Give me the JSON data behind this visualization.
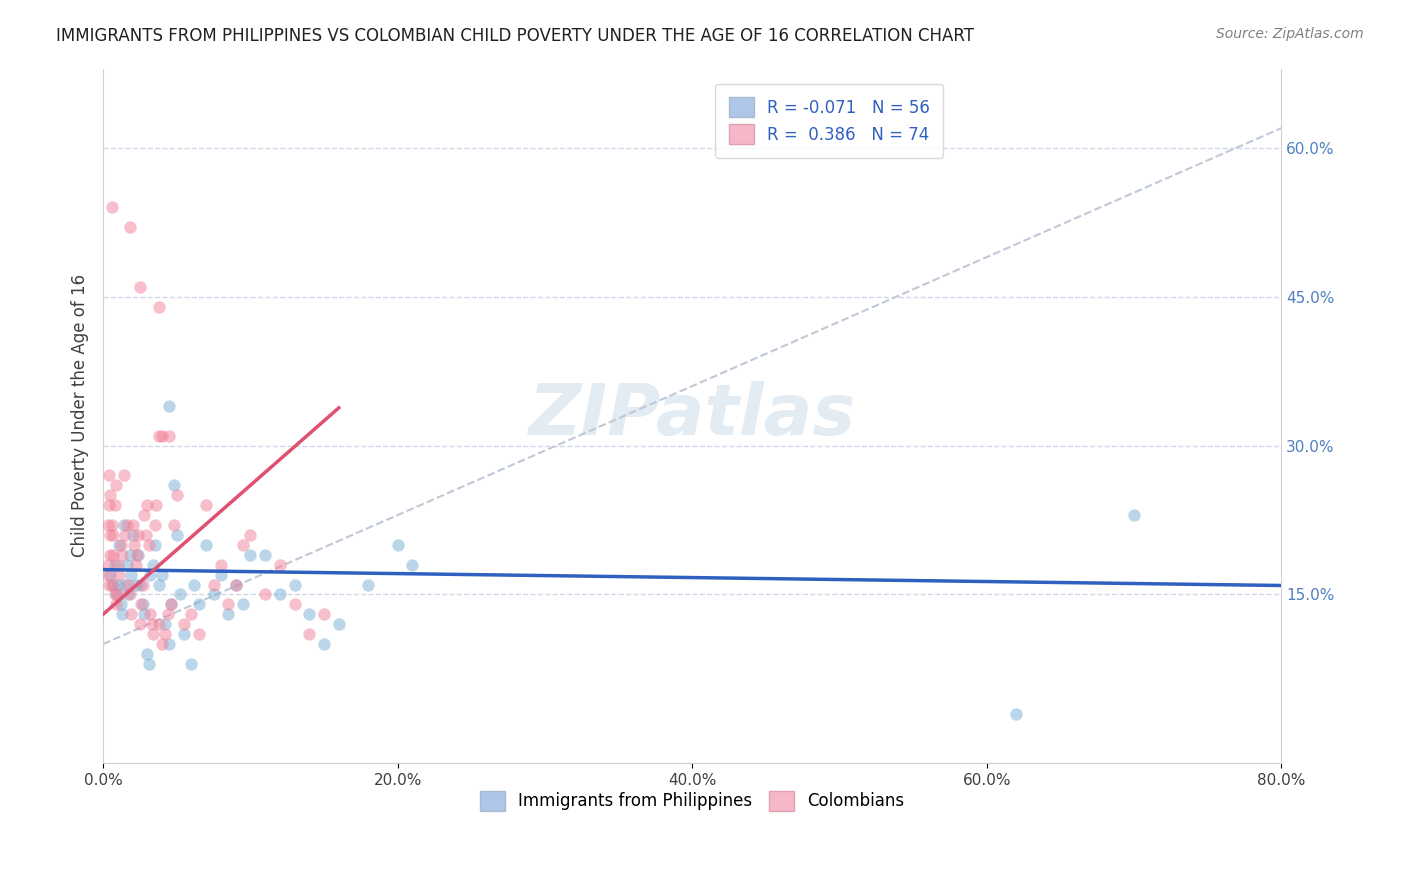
{
  "title": "IMMIGRANTS FROM PHILIPPINES VS COLOMBIAN CHILD POVERTY UNDER THE AGE OF 16 CORRELATION CHART",
  "source": "Source: ZipAtlas.com",
  "ylabel": "Child Poverty Under the Age of 16",
  "xlim": [
    0.0,
    0.8
  ],
  "ylim": [
    -0.02,
    0.68
  ],
  "right_yticks": [
    0.15,
    0.3,
    0.45,
    0.6
  ],
  "right_yticklabels": [
    "15.0%",
    "30.0%",
    "45.0%",
    "60.0%"
  ],
  "xticks": [
    0.0,
    0.2,
    0.4,
    0.6,
    0.8
  ],
  "xticklabels": [
    "0.0%",
    "20.0%",
    "40.0%",
    "60.0%",
    "80.0%"
  ],
  "legend_blue_label": "R = -0.071   N = 56",
  "legend_pink_label": "R =  0.386   N = 74",
  "legend_blue_color": "#aec6e8",
  "legend_pink_color": "#f4b8c8",
  "bottom_legend_blue": "Immigrants from Philippines",
  "bottom_legend_pink": "Colombians",
  "blue_scatter": [
    [
      0.005,
      0.17
    ],
    [
      0.007,
      0.16
    ],
    [
      0.008,
      0.18
    ],
    [
      0.009,
      0.15
    ],
    [
      0.01,
      0.16
    ],
    [
      0.011,
      0.2
    ],
    [
      0.012,
      0.14
    ],
    [
      0.013,
      0.13
    ],
    [
      0.014,
      0.22
    ],
    [
      0.015,
      0.16
    ],
    [
      0.016,
      0.18
    ],
    [
      0.017,
      0.15
    ],
    [
      0.018,
      0.19
    ],
    [
      0.019,
      0.17
    ],
    [
      0.02,
      0.21
    ],
    [
      0.022,
      0.16
    ],
    [
      0.024,
      0.19
    ],
    [
      0.025,
      0.16
    ],
    [
      0.027,
      0.14
    ],
    [
      0.028,
      0.13
    ],
    [
      0.03,
      0.09
    ],
    [
      0.031,
      0.08
    ],
    [
      0.032,
      0.17
    ],
    [
      0.034,
      0.18
    ],
    [
      0.035,
      0.2
    ],
    [
      0.038,
      0.16
    ],
    [
      0.04,
      0.17
    ],
    [
      0.042,
      0.12
    ],
    [
      0.045,
      0.1
    ],
    [
      0.046,
      0.14
    ],
    [
      0.048,
      0.26
    ],
    [
      0.05,
      0.21
    ],
    [
      0.052,
      0.15
    ],
    [
      0.055,
      0.11
    ],
    [
      0.06,
      0.08
    ],
    [
      0.062,
      0.16
    ],
    [
      0.065,
      0.14
    ],
    [
      0.07,
      0.2
    ],
    [
      0.075,
      0.15
    ],
    [
      0.08,
      0.17
    ],
    [
      0.085,
      0.13
    ],
    [
      0.09,
      0.16
    ],
    [
      0.095,
      0.14
    ],
    [
      0.1,
      0.19
    ],
    [
      0.11,
      0.19
    ],
    [
      0.12,
      0.15
    ],
    [
      0.13,
      0.16
    ],
    [
      0.14,
      0.13
    ],
    [
      0.15,
      0.1
    ],
    [
      0.16,
      0.12
    ],
    [
      0.18,
      0.16
    ],
    [
      0.2,
      0.2
    ],
    [
      0.21,
      0.18
    ],
    [
      0.045,
      0.34
    ],
    [
      0.7,
      0.23
    ],
    [
      0.62,
      0.03
    ]
  ],
  "pink_scatter": [
    [
      0.003,
      0.17
    ],
    [
      0.004,
      0.16
    ],
    [
      0.005,
      0.21
    ],
    [
      0.006,
      0.22
    ],
    [
      0.007,
      0.19
    ],
    [
      0.008,
      0.15
    ],
    [
      0.009,
      0.14
    ],
    [
      0.01,
      0.18
    ],
    [
      0.011,
      0.17
    ],
    [
      0.012,
      0.2
    ],
    [
      0.013,
      0.19
    ],
    [
      0.014,
      0.27
    ],
    [
      0.015,
      0.21
    ],
    [
      0.016,
      0.22
    ],
    [
      0.017,
      0.16
    ],
    [
      0.018,
      0.15
    ],
    [
      0.019,
      0.13
    ],
    [
      0.02,
      0.22
    ],
    [
      0.021,
      0.2
    ],
    [
      0.022,
      0.18
    ],
    [
      0.023,
      0.19
    ],
    [
      0.024,
      0.21
    ],
    [
      0.025,
      0.12
    ],
    [
      0.026,
      0.14
    ],
    [
      0.027,
      0.16
    ],
    [
      0.028,
      0.23
    ],
    [
      0.029,
      0.21
    ],
    [
      0.03,
      0.24
    ],
    [
      0.031,
      0.2
    ],
    [
      0.032,
      0.13
    ],
    [
      0.033,
      0.12
    ],
    [
      0.034,
      0.11
    ],
    [
      0.035,
      0.22
    ],
    [
      0.036,
      0.24
    ],
    [
      0.038,
      0.12
    ],
    [
      0.04,
      0.1
    ],
    [
      0.042,
      0.11
    ],
    [
      0.044,
      0.13
    ],
    [
      0.046,
      0.14
    ],
    [
      0.048,
      0.22
    ],
    [
      0.05,
      0.25
    ],
    [
      0.055,
      0.12
    ],
    [
      0.06,
      0.13
    ],
    [
      0.065,
      0.11
    ],
    [
      0.07,
      0.24
    ],
    [
      0.075,
      0.16
    ],
    [
      0.08,
      0.18
    ],
    [
      0.085,
      0.14
    ],
    [
      0.09,
      0.16
    ],
    [
      0.095,
      0.2
    ],
    [
      0.1,
      0.21
    ],
    [
      0.11,
      0.15
    ],
    [
      0.12,
      0.18
    ],
    [
      0.13,
      0.14
    ],
    [
      0.14,
      0.11
    ],
    [
      0.15,
      0.13
    ],
    [
      0.006,
      0.54
    ],
    [
      0.018,
      0.52
    ],
    [
      0.025,
      0.46
    ],
    [
      0.038,
      0.31
    ],
    [
      0.04,
      0.31
    ],
    [
      0.038,
      0.44
    ],
    [
      0.045,
      0.31
    ],
    [
      0.003,
      0.22
    ],
    [
      0.004,
      0.24
    ],
    [
      0.004,
      0.27
    ],
    [
      0.003,
      0.18
    ],
    [
      0.005,
      0.25
    ],
    [
      0.005,
      0.19
    ],
    [
      0.006,
      0.16
    ],
    [
      0.007,
      0.21
    ],
    [
      0.008,
      0.24
    ],
    [
      0.009,
      0.26
    ],
    [
      0.01,
      0.15
    ]
  ],
  "blue_line_x": [
    0.0,
    0.8
  ],
  "blue_line_y_intercept": 0.175,
  "blue_line_slope": -0.02,
  "pink_line_x": [
    0.0,
    0.16
  ],
  "pink_line_y_intercept": 0.13,
  "pink_line_slope": 1.3,
  "dashed_line_x": [
    0.0,
    0.8
  ],
  "dashed_line_y_intercept": 0.1,
  "dashed_line_slope": 0.65,
  "watermark": "ZIPatlas",
  "background_color": "#ffffff",
  "grid_color": "#d0d8e8",
  "scatter_size": 80,
  "scatter_alpha": 0.5,
  "blue_scatter_color": "#7bafd4",
  "pink_scatter_color": "#f08098",
  "blue_line_color": "#3060c0",
  "pink_line_color": "#e05070",
  "dashed_line_color": "#c0c8d8"
}
